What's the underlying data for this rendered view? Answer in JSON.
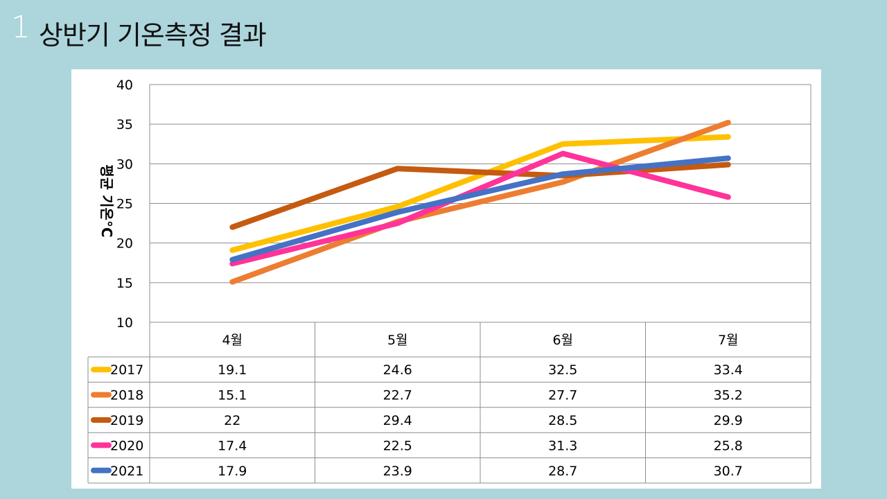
{
  "slide": {
    "number": "1",
    "title": "상반기 기온측정 결과"
  },
  "chart_data": {
    "type": "line",
    "title": "",
    "xlabel": "",
    "ylabel": "평균 기온°C",
    "ylim": [
      10,
      40
    ],
    "yticks": [
      10,
      15,
      20,
      25,
      30,
      35,
      40
    ],
    "grid": true,
    "legend": "data-table",
    "categories": [
      "4월",
      "5월",
      "6월",
      "7월"
    ],
    "series": [
      {
        "name": "2017",
        "color": "#ffc000",
        "values": [
          19.1,
          24.6,
          32.5,
          33.4
        ],
        "labels": [
          "19.1",
          "24.6",
          "32.5",
          "33.4"
        ]
      },
      {
        "name": "2018",
        "color": "#ed7d31",
        "values": [
          15.1,
          22.7,
          27.7,
          35.2
        ],
        "labels": [
          "15.1",
          "22.7",
          "27.7",
          "35.2"
        ]
      },
      {
        "name": "2019",
        "color": "#c55a11",
        "values": [
          22,
          29.4,
          28.5,
          29.9
        ],
        "labels": [
          "22",
          "29.4",
          "28.5",
          "29.9"
        ]
      },
      {
        "name": "2020",
        "color": "#ff3399",
        "values": [
          17.4,
          22.5,
          31.3,
          25.8
        ],
        "labels": [
          "17.4",
          "22.5",
          "31.3",
          "25.8"
        ]
      },
      {
        "name": "2021",
        "color": "#4472c4",
        "values": [
          17.9,
          23.9,
          28.7,
          30.7
        ],
        "labels": [
          "17.9",
          "23.9",
          "28.7",
          "30.7"
        ]
      }
    ]
  }
}
